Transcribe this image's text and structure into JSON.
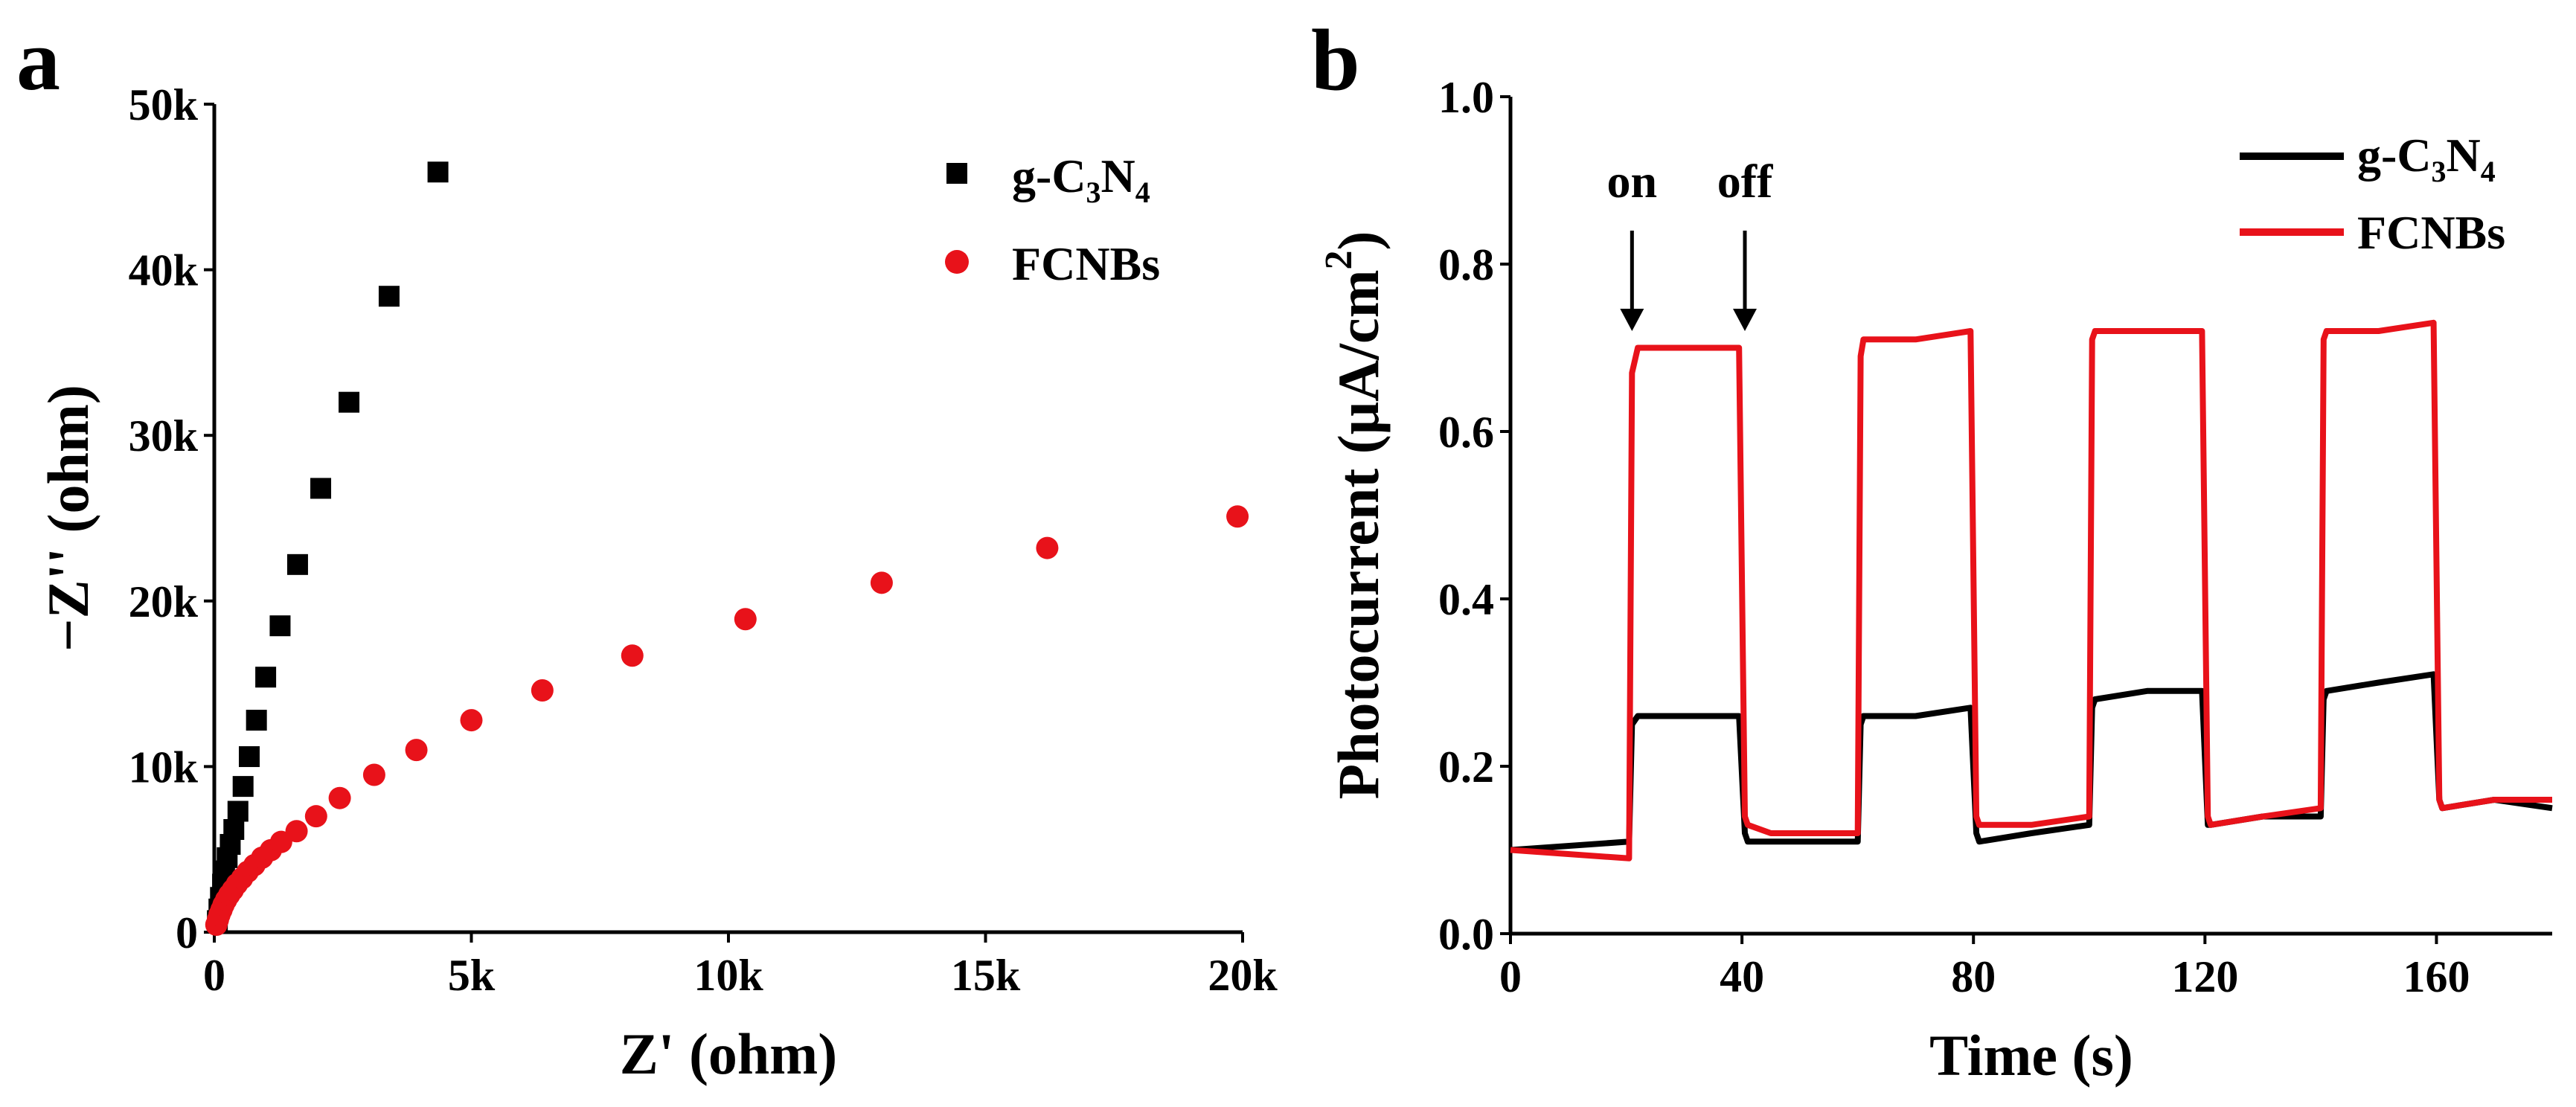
{
  "panels": [
    {
      "letter": "a"
    },
    {
      "letter": "b"
    }
  ],
  "chart_data": [
    {
      "panel": "a",
      "type": "scatter",
      "title": "",
      "xlabel": "Z' (ohm)",
      "ylabel": "−Z'' (ohm)",
      "xlim": [
        0,
        20000
      ],
      "ylim": [
        0,
        50000
      ],
      "xticks": [
        0,
        5000,
        10000,
        15000,
        20000
      ],
      "xtick_labels": [
        "0",
        "5k",
        "10k",
        "15k",
        "20k"
      ],
      "yticks": [
        0,
        10000,
        20000,
        30000,
        40000,
        50000
      ],
      "ytick_labels": [
        "0",
        "10k",
        "20k",
        "30k",
        "40k",
        "50k"
      ],
      "legend_position": "top-right",
      "series": [
        {
          "name": "g-C3N4",
          "legend_label": {
            "base": "g-C",
            "sub1": "3",
            "mid": "N",
            "sub2": "4"
          },
          "marker": "square",
          "color": "#000000",
          "x": [
            60,
            90,
            120,
            160,
            200,
            250,
            310,
            380,
            460,
            560,
            680,
            820,
            1000,
            1280,
            1620,
            2070,
            2620,
            3400,
            4350
          ],
          "y": [
            700,
            1400,
            2100,
            2900,
            3700,
            4500,
            5300,
            6200,
            7300,
            8800,
            10600,
            12800,
            15400,
            18500,
            22200,
            26800,
            32000,
            38400,
            45900
          ]
        },
        {
          "name": "FCNBs",
          "marker": "circle",
          "color": "#e8121a",
          "x": [
            40,
            70,
            100,
            140,
            180,
            230,
            290,
            360,
            440,
            540,
            650,
            780,
            930,
            1100,
            1300,
            1600,
            1980,
            2440,
            3110,
            3930,
            5000,
            6380,
            8130,
            10330,
            12980,
            16200,
            19900
          ],
          "y": [
            450,
            750,
            1050,
            1350,
            1650,
            1950,
            2250,
            2550,
            2900,
            3250,
            3650,
            4050,
            4500,
            4950,
            5450,
            6100,
            7000,
            8100,
            9500,
            11000,
            12800,
            14600,
            16700,
            18900,
            21100,
            23200,
            25100
          ]
        }
      ]
    },
    {
      "panel": "b",
      "type": "line",
      "title": "",
      "xlabel": "Time (s)",
      "ylabel": "Photocurrent (μA/cm",
      "ylabel_sup": "2",
      "ylabel_close": ")",
      "xlim": [
        0,
        180
      ],
      "ylim": [
        0,
        1.0
      ],
      "xticks": [
        0,
        40,
        80,
        120,
        160
      ],
      "xtick_labels": [
        "0",
        "40",
        "80",
        "120",
        "160"
      ],
      "yticks": [
        0,
        0.2,
        0.4,
        0.6,
        0.8,
        1.0
      ],
      "ytick_labels": [
        "0.0",
        "0.2",
        "0.4",
        "0.6",
        "0.8",
        "1.0"
      ],
      "legend_position": "top-right",
      "annotations": [
        {
          "text": "on",
          "x": 21,
          "y_text": 0.88,
          "arrow_from": 0.84,
          "arrow_to": 0.72
        },
        {
          "text": "off",
          "x": 40.5,
          "y_text": 0.88,
          "arrow_from": 0.84,
          "arrow_to": 0.72
        }
      ],
      "series": [
        {
          "name": "g-C3N4",
          "legend_label": {
            "base": "g-C",
            "sub1": "3",
            "mid": "N",
            "sub2": "4"
          },
          "color": "#000000",
          "x": [
            0,
            20.5,
            21,
            22,
            30,
            39.5,
            40.5,
            41,
            45,
            60,
            60.5,
            61,
            70,
            79.5,
            80.5,
            81,
            90,
            100,
            100.5,
            101,
            110,
            119.5,
            120.5,
            121,
            130,
            140,
            140.5,
            141,
            150,
            159.5,
            160.5,
            161,
            170,
            180
          ],
          "y": [
            0.1,
            0.11,
            0.25,
            0.26,
            0.26,
            0.26,
            0.12,
            0.11,
            0.11,
            0.11,
            0.25,
            0.26,
            0.26,
            0.27,
            0.12,
            0.11,
            0.12,
            0.13,
            0.27,
            0.28,
            0.29,
            0.29,
            0.13,
            0.13,
            0.14,
            0.14,
            0.28,
            0.29,
            0.3,
            0.31,
            0.16,
            0.15,
            0.16,
            0.15
          ]
        },
        {
          "name": "FCNBs",
          "color": "#e8121a",
          "x": [
            0,
            20.5,
            21,
            22,
            30,
            39.5,
            40.5,
            41,
            45,
            60,
            60.5,
            61,
            70,
            79.5,
            80.5,
            81,
            90,
            100,
            100.5,
            101,
            110,
            119.5,
            120.5,
            121,
            130,
            140,
            140.5,
            141,
            150,
            159.5,
            160.5,
            161,
            170,
            180
          ],
          "y": [
            0.1,
            0.09,
            0.67,
            0.7,
            0.7,
            0.7,
            0.14,
            0.13,
            0.12,
            0.12,
            0.69,
            0.71,
            0.71,
            0.72,
            0.14,
            0.13,
            0.13,
            0.14,
            0.71,
            0.72,
            0.72,
            0.72,
            0.14,
            0.13,
            0.14,
            0.15,
            0.71,
            0.72,
            0.72,
            0.73,
            0.16,
            0.15,
            0.16,
            0.16
          ]
        }
      ]
    }
  ]
}
